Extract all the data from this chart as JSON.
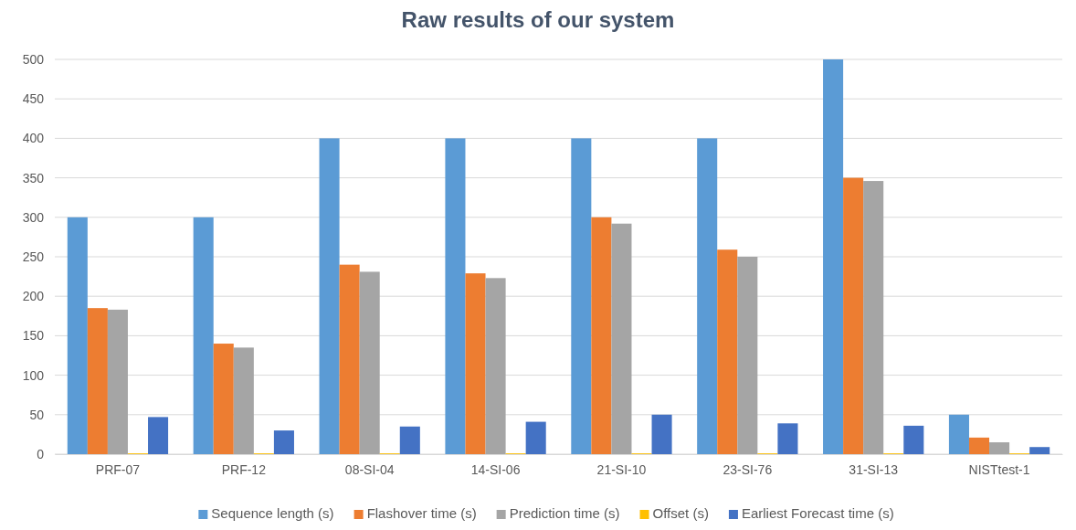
{
  "chart_data": {
    "type": "bar",
    "title": "Raw results of our system",
    "categories": [
      "PRF-07",
      "PRF-12",
      "08-SI-04",
      "14-SI-06",
      "21-SI-10",
      "23-SI-76",
      "31-SI-13",
      "NISTtest-1"
    ],
    "series": [
      {
        "name": "Sequence length (s)",
        "color": "#5b9bd5",
        "values": [
          300,
          300,
          400,
          400,
          400,
          400,
          500,
          50
        ]
      },
      {
        "name": "Flashover time (s)",
        "color": "#ed7d31",
        "values": [
          185,
          140,
          240,
          229,
          300,
          259,
          350,
          21
        ]
      },
      {
        "name": "Prediction time (s)",
        "color": "#a5a5a5",
        "values": [
          183,
          135,
          231,
          223,
          292,
          250,
          346,
          15
        ]
      },
      {
        "name": "Offset (s)",
        "color": "#ffc000",
        "values": [
          1,
          1,
          1,
          1,
          1,
          1,
          1,
          1
        ]
      },
      {
        "name": "Earliest Forecast time (s)",
        "color": "#4472c4",
        "values": [
          47,
          30,
          35,
          41,
          50,
          39,
          36,
          9
        ]
      }
    ],
    "ylim": [
      0,
      500
    ],
    "yticks": [
      0,
      50,
      100,
      150,
      200,
      250,
      300,
      350,
      400,
      450,
      500
    ],
    "grid": "y",
    "legend": "bottom"
  }
}
